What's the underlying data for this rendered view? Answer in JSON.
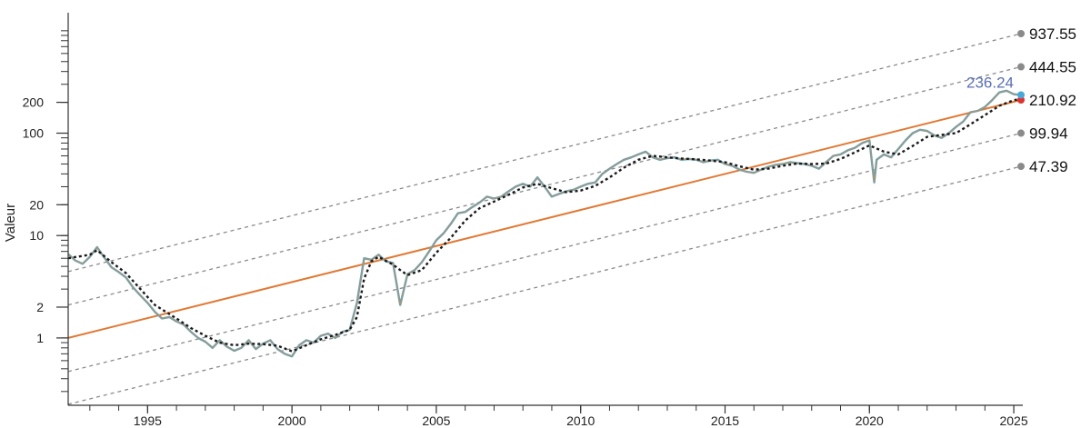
{
  "chart_data": {
    "type": "line",
    "ylabel": "Valeur",
    "xlabel": "",
    "y_scale": "log",
    "y_tick_labels": [
      "1",
      "2",
      "10",
      "20",
      "100",
      "200"
    ],
    "x_tick_labels": [
      "1995",
      "2000",
      "2005",
      "2010",
      "2015",
      "2020",
      "2025"
    ],
    "xlim": [
      "1992-04",
      "2025-04"
    ],
    "ylim": [
      0.22,
      1500
    ],
    "series": [
      {
        "role": "price",
        "color": "#4aa8d8",
        "points": [
          [
            "1992-04",
            6.6
          ],
          [
            "1992-07",
            5.7
          ],
          [
            "1992-10",
            5.3
          ],
          [
            "1993-01",
            6.2
          ],
          [
            "1993-04",
            7.7
          ],
          [
            "1993-07",
            6.1
          ],
          [
            "1993-10",
            4.9
          ],
          [
            "1994-01",
            4.4
          ],
          [
            "1994-04",
            3.9
          ],
          [
            "1994-07",
            3.1
          ],
          [
            "1994-10",
            2.6
          ],
          [
            "1995-01",
            2.2
          ],
          [
            "1995-04",
            1.8
          ],
          [
            "1995-07",
            1.55
          ],
          [
            "1995-10",
            1.6
          ],
          [
            "1996-01",
            1.45
          ],
          [
            "1996-04",
            1.35
          ],
          [
            "1996-07",
            1.15
          ],
          [
            "1996-10",
            1.0
          ],
          [
            "1997-01",
            0.92
          ],
          [
            "1997-04",
            0.8
          ],
          [
            "1997-07",
            0.95
          ],
          [
            "1997-10",
            0.82
          ],
          [
            "1998-01",
            0.75
          ],
          [
            "1998-04",
            0.8
          ],
          [
            "1998-07",
            0.95
          ],
          [
            "1998-10",
            0.78
          ],
          [
            "1999-01",
            0.88
          ],
          [
            "1999-04",
            0.95
          ],
          [
            "1999-07",
            0.78
          ],
          [
            "1999-10",
            0.7
          ],
          [
            "2000-01",
            0.66
          ],
          [
            "2000-04",
            0.85
          ],
          [
            "2000-07",
            0.95
          ],
          [
            "2000-10",
            0.9
          ],
          [
            "2001-01",
            1.05
          ],
          [
            "2001-04",
            1.1
          ],
          [
            "2001-07",
            1.0
          ],
          [
            "2001-10",
            1.15
          ],
          [
            "2002-01",
            1.2
          ],
          [
            "2002-04",
            2.2
          ],
          [
            "2002-07",
            6.0
          ],
          [
            "2002-10",
            5.8
          ],
          [
            "2003-01",
            6.5
          ],
          [
            "2003-04",
            5.6
          ],
          [
            "2003-07",
            5.4
          ],
          [
            "2003-10",
            2.1
          ],
          [
            "2004-01",
            4.2
          ],
          [
            "2004-04",
            4.6
          ],
          [
            "2004-07",
            5.5
          ],
          [
            "2004-10",
            7.0
          ],
          [
            "2005-01",
            9.0
          ],
          [
            "2005-04",
            10.5
          ],
          [
            "2005-07",
            13.0
          ],
          [
            "2005-10",
            16.5
          ],
          [
            "2006-01",
            17.0
          ],
          [
            "2006-04",
            19.0
          ],
          [
            "2006-07",
            21.0
          ],
          [
            "2006-10",
            24.0
          ],
          [
            "2007-01",
            23.0
          ],
          [
            "2007-04",
            24.0
          ],
          [
            "2007-07",
            27.0
          ],
          [
            "2007-10",
            30.0
          ],
          [
            "2008-01",
            32.0
          ],
          [
            "2008-04",
            30.0
          ],
          [
            "2008-07",
            37.0
          ],
          [
            "2008-10",
            30.0
          ],
          [
            "2009-01",
            24.0
          ],
          [
            "2009-04",
            25.5
          ],
          [
            "2009-07",
            27.0
          ],
          [
            "2009-10",
            28.0
          ],
          [
            "2010-01",
            30.0
          ],
          [
            "2010-04",
            32.0
          ],
          [
            "2010-07",
            33.0
          ],
          [
            "2010-10",
            40.0
          ],
          [
            "2011-01",
            45.0
          ],
          [
            "2011-04",
            50.0
          ],
          [
            "2011-07",
            55.0
          ],
          [
            "2011-10",
            58.0
          ],
          [
            "2012-01",
            62.0
          ],
          [
            "2012-04",
            66.0
          ],
          [
            "2012-07",
            58.0
          ],
          [
            "2012-10",
            55.0
          ],
          [
            "2013-01",
            57.0
          ],
          [
            "2013-04",
            58.0
          ],
          [
            "2013-07",
            55.0
          ],
          [
            "2013-10",
            56.0
          ],
          [
            "2014-01",
            55.0
          ],
          [
            "2014-04",
            52.0
          ],
          [
            "2014-07",
            54.0
          ],
          [
            "2014-10",
            55.0
          ],
          [
            "2015-01",
            50.0
          ],
          [
            "2015-04",
            48.0
          ],
          [
            "2015-07",
            44.0
          ],
          [
            "2015-10",
            42.0
          ],
          [
            "2016-01",
            41.0
          ],
          [
            "2016-04",
            44.0
          ],
          [
            "2016-07",
            47.0
          ],
          [
            "2016-10",
            49.0
          ],
          [
            "2017-01",
            50.0
          ],
          [
            "2017-04",
            52.0
          ],
          [
            "2017-07",
            51.0
          ],
          [
            "2017-10",
            50.0
          ],
          [
            "2018-01",
            48.0
          ],
          [
            "2018-04",
            45.0
          ],
          [
            "2018-07",
            52.0
          ],
          [
            "2018-10",
            60.0
          ],
          [
            "2019-01",
            62.0
          ],
          [
            "2019-04",
            68.0
          ],
          [
            "2019-07",
            72.0
          ],
          [
            "2019-10",
            80.0
          ],
          [
            "2020-01",
            85.0
          ],
          [
            "2020-03",
            33.0
          ],
          [
            "2020-04",
            55.0
          ],
          [
            "2020-07",
            62.0
          ],
          [
            "2020-10",
            58.0
          ],
          [
            "2021-01",
            70.0
          ],
          [
            "2021-04",
            85.0
          ],
          [
            "2021-07",
            100.0
          ],
          [
            "2021-10",
            108.0
          ],
          [
            "2022-01",
            105.0
          ],
          [
            "2022-04",
            95.0
          ],
          [
            "2022-07",
            90.0
          ],
          [
            "2022-10",
            100.0
          ],
          [
            "2023-01",
            115.0
          ],
          [
            "2023-04",
            130.0
          ],
          [
            "2023-07",
            160.0
          ],
          [
            "2023-10",
            165.0
          ],
          [
            "2024-01",
            180.0
          ],
          [
            "2024-04",
            210.0
          ],
          [
            "2024-07",
            250.0
          ],
          [
            "2024-10",
            260.0
          ],
          [
            "2025-01",
            240.0
          ],
          [
            "2025-04",
            236.24
          ]
        ]
      },
      {
        "role": "moving-average",
        "color": "#1a1a1a",
        "points": [
          [
            "1992-04",
            6.0
          ],
          [
            "1993-01",
            6.5
          ],
          [
            "1993-04",
            7.2
          ],
          [
            "1993-10",
            5.5
          ],
          [
            "1994-04",
            4.3
          ],
          [
            "1994-10",
            3.0
          ],
          [
            "1995-04",
            2.1
          ],
          [
            "1996-01",
            1.55
          ],
          [
            "1996-07",
            1.25
          ],
          [
            "1997-01",
            1.05
          ],
          [
            "1997-07",
            0.9
          ],
          [
            "1998-01",
            0.85
          ],
          [
            "1998-07",
            0.88
          ],
          [
            "1999-01",
            0.87
          ],
          [
            "1999-07",
            0.84
          ],
          [
            "2000-01",
            0.74
          ],
          [
            "2000-07",
            0.85
          ],
          [
            "2001-01",
            0.97
          ],
          [
            "2001-07",
            1.07
          ],
          [
            "2002-01",
            1.2
          ],
          [
            "2002-04",
            1.6
          ],
          [
            "2002-07",
            3.8
          ],
          [
            "2002-10",
            5.6
          ],
          [
            "2003-01",
            6.2
          ],
          [
            "2003-07",
            5.2
          ],
          [
            "2003-10",
            4.6
          ],
          [
            "2004-01",
            4.1
          ],
          [
            "2004-07",
            4.6
          ],
          [
            "2005-01",
            6.8
          ],
          [
            "2005-07",
            9.5
          ],
          [
            "2006-01",
            14.0
          ],
          [
            "2006-07",
            18.5
          ],
          [
            "2007-01",
            21.5
          ],
          [
            "2007-07",
            25.0
          ],
          [
            "2008-01",
            29.5
          ],
          [
            "2008-07",
            32.0
          ],
          [
            "2009-01",
            29.0
          ],
          [
            "2009-07",
            26.5
          ],
          [
            "2010-01",
            27.5
          ],
          [
            "2010-07",
            30.5
          ],
          [
            "2011-01",
            37.0
          ],
          [
            "2011-07",
            46.0
          ],
          [
            "2012-01",
            55.0
          ],
          [
            "2012-07",
            60.0
          ],
          [
            "2013-01",
            58.0
          ],
          [
            "2013-07",
            56.5
          ],
          [
            "2014-01",
            55.5
          ],
          [
            "2014-07",
            54.0
          ],
          [
            "2015-01",
            52.0
          ],
          [
            "2015-07",
            47.5
          ],
          [
            "2016-01",
            44.0
          ],
          [
            "2016-07",
            45.0
          ],
          [
            "2017-01",
            48.0
          ],
          [
            "2017-07",
            50.5
          ],
          [
            "2018-01",
            50.0
          ],
          [
            "2018-07",
            50.5
          ],
          [
            "2019-01",
            56.0
          ],
          [
            "2019-07",
            65.0
          ],
          [
            "2020-01",
            76.0
          ],
          [
            "2020-07",
            66.0
          ],
          [
            "2021-01",
            62.0
          ],
          [
            "2021-07",
            75.0
          ],
          [
            "2022-01",
            92.0
          ],
          [
            "2022-07",
            96.0
          ],
          [
            "2023-01",
            100.0
          ],
          [
            "2023-07",
            122.0
          ],
          [
            "2024-01",
            150.0
          ],
          [
            "2024-07",
            185.0
          ],
          [
            "2025-01",
            210.0
          ],
          [
            "2025-04",
            215.0
          ]
        ]
      }
    ],
    "regression": {
      "color": "#e07a35",
      "start": [
        "1992-04",
        1.0
      ],
      "end": [
        "2025-04",
        210.92
      ]
    },
    "channels": [
      {
        "start": [
          "1992-04",
          4.45
        ],
        "end": [
          "2025-04",
          937.55
        ]
      },
      {
        "start": [
          "1992-04",
          2.1
        ],
        "end": [
          "2025-04",
          444.55
        ]
      },
      {
        "start": [
          "1992-04",
          0.47
        ],
        "end": [
          "2025-04",
          99.94
        ]
      },
      {
        "start": [
          "1992-04",
          0.225
        ],
        "end": [
          "2025-04",
          47.39
        ]
      }
    ],
    "end_labels": [
      {
        "text": "937.55",
        "value": 937.55,
        "marker": "#8a8a8a"
      },
      {
        "text": "444.55",
        "value": 444.55,
        "marker": "#8a8a8a"
      },
      {
        "text": "210.92",
        "value": 210.92,
        "marker": "#e03030"
      },
      {
        "text": "99.94",
        "value": 99.94,
        "marker": "#8a8a8a"
      },
      {
        "text": "47.39",
        "value": 47.39,
        "marker": "#8a8a8a"
      }
    ],
    "last_value": {
      "text": "236.24",
      "value": 236.24,
      "date": "2025-04",
      "color": "#5a6fb3"
    },
    "colors": {
      "price": "#4aa8d8",
      "price_overlay": "#e08a3a",
      "regression": "#e07a35",
      "channels": "#8a8a8a",
      "moving_average": "#1a1a1a",
      "axis": "#333333"
    },
    "grid": false
  }
}
